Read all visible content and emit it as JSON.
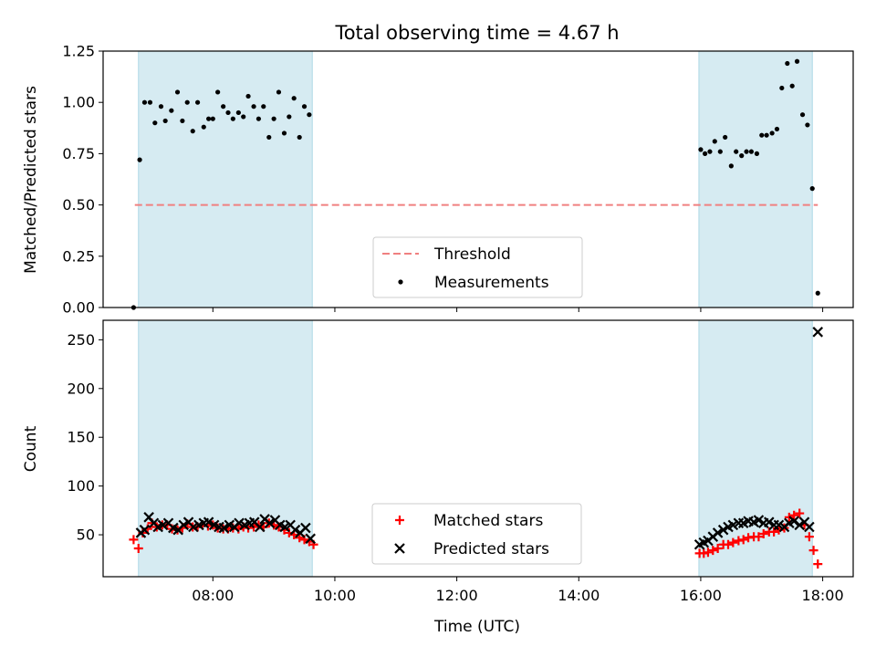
{
  "title": "Total observing time = 4.67 h",
  "x_axis": {
    "label": "Time (UTC)",
    "range_hours": [
      6.2,
      18.5
    ],
    "ticks": [
      {
        "h": 8,
        "label": "08:00"
      },
      {
        "h": 10,
        "label": "10:00"
      },
      {
        "h": 12,
        "label": "12:00"
      },
      {
        "h": 14,
        "label": "14:00"
      },
      {
        "h": 16,
        "label": "16:00"
      },
      {
        "h": 18,
        "label": "18:00"
      }
    ]
  },
  "colors": {
    "shade": "#add8e6",
    "threshold": "#f08080",
    "matched": "#ff0000",
    "predicted": "#000000",
    "measurement": "#000000"
  },
  "chart_data": [
    {
      "type": "scatter",
      "title": "Total observing time = 4.67 h",
      "ylabel": "Matched/Predicted stars",
      "xlabel": "",
      "ylim": [
        0,
        1.25
      ],
      "yticks": [
        "0.00",
        "0.25",
        "0.50",
        "0.75",
        "1.00",
        "1.25"
      ],
      "ytick_values": [
        0,
        0.25,
        0.5,
        0.75,
        1.0,
        1.25
      ],
      "shaded_spans_hours": [
        [
          6.78,
          9.63
        ],
        [
          15.97,
          17.83
        ]
      ],
      "legend": {
        "position": "lower-center",
        "entries": [
          "Threshold",
          "Measurements"
        ]
      },
      "threshold": {
        "name": "Threshold",
        "value": 0.5,
        "x_range_hours": [
          6.72,
          17.92
        ]
      },
      "series": [
        {
          "name": "Measurements",
          "x_hours": [
            6.7,
            6.8,
            6.88,
            6.97,
            7.05,
            7.15,
            7.22,
            7.32,
            7.42,
            7.5,
            7.58,
            7.67,
            7.75,
            7.85,
            7.93,
            8.0,
            8.08,
            8.17,
            8.25,
            8.33,
            8.42,
            8.5,
            8.58,
            8.67,
            8.75,
            8.83,
            8.92,
            9.0,
            9.08,
            9.17,
            9.25,
            9.33,
            9.42,
            9.5,
            9.58,
            16.0,
            16.07,
            16.15,
            16.23,
            16.32,
            16.4,
            16.5,
            16.58,
            16.67,
            16.75,
            16.83,
            16.92,
            17.0,
            17.08,
            17.17,
            17.25,
            17.33,
            17.42,
            17.5,
            17.58,
            17.67,
            17.75,
            17.83,
            17.92
          ],
          "y": [
            0.0,
            0.72,
            1.0,
            1.0,
            0.9,
            0.98,
            0.91,
            0.96,
            1.05,
            0.91,
            1.0,
            0.86,
            1.0,
            0.88,
            0.92,
            0.92,
            1.05,
            0.98,
            0.95,
            0.92,
            0.95,
            0.93,
            1.03,
            0.98,
            0.92,
            0.98,
            0.83,
            0.92,
            1.05,
            0.85,
            0.93,
            1.02,
            0.83,
            0.98,
            0.94,
            0.77,
            0.75,
            0.76,
            0.81,
            0.76,
            0.83,
            0.69,
            0.76,
            0.74,
            0.76,
            0.76,
            0.75,
            0.84,
            0.84,
            0.85,
            0.87,
            1.07,
            1.19,
            1.08,
            1.2,
            0.94,
            0.89,
            0.58,
            0.07
          ]
        }
      ]
    },
    {
      "type": "scatter",
      "ylabel": "Count",
      "xlabel": "Time (UTC)",
      "ylim": [
        7,
        270
      ],
      "yticks": [
        "50",
        "100",
        "150",
        "200",
        "250"
      ],
      "ytick_values": [
        50,
        100,
        150,
        200,
        250
      ],
      "shaded_spans_hours": [
        [
          6.78,
          9.63
        ],
        [
          15.97,
          17.83
        ]
      ],
      "legend": {
        "position": "lower-center",
        "entries": [
          "Matched stars",
          "Predicted stars"
        ]
      },
      "series": [
        {
          "name": "Matched stars",
          "marker": "+",
          "x_hours": [
            6.7,
            6.78,
            6.85,
            6.93,
            7.0,
            7.08,
            7.17,
            7.25,
            7.33,
            7.42,
            7.5,
            7.58,
            7.67,
            7.75,
            7.83,
            7.92,
            8.0,
            8.08,
            8.17,
            8.25,
            8.33,
            8.42,
            8.5,
            8.58,
            8.67,
            8.75,
            8.83,
            8.92,
            9.0,
            9.08,
            9.17,
            9.25,
            9.33,
            9.42,
            9.5,
            9.58,
            9.65,
            15.98,
            16.05,
            16.12,
            16.2,
            16.28,
            16.37,
            16.45,
            16.53,
            16.62,
            16.7,
            16.78,
            16.87,
            16.95,
            17.03,
            17.12,
            17.2,
            17.28,
            17.37,
            17.45,
            17.53,
            17.62,
            17.7,
            17.78,
            17.85,
            17.92
          ],
          "y": [
            45,
            36,
            52,
            56,
            62,
            58,
            60,
            60,
            56,
            55,
            57,
            61,
            58,
            58,
            60,
            59,
            60,
            57,
            56,
            56,
            57,
            56,
            58,
            57,
            58,
            60,
            58,
            62,
            60,
            58,
            55,
            52,
            50,
            47,
            45,
            43,
            40,
            31,
            31,
            32,
            34,
            36,
            40,
            40,
            42,
            44,
            45,
            47,
            48,
            48,
            51,
            53,
            53,
            55,
            57,
            68,
            70,
            72,
            60,
            48,
            34,
            20
          ]
        },
        {
          "name": "Predicted stars",
          "marker": "x",
          "x_hours": [
            6.82,
            6.88,
            6.95,
            7.03,
            7.1,
            7.18,
            7.27,
            7.35,
            7.43,
            7.52,
            7.6,
            7.68,
            7.77,
            7.85,
            7.93,
            8.02,
            8.1,
            8.18,
            8.27,
            8.35,
            8.43,
            8.52,
            8.6,
            8.68,
            8.77,
            8.85,
            8.93,
            9.02,
            9.1,
            9.18,
            9.27,
            9.35,
            9.43,
            9.52,
            9.6,
            15.98,
            16.05,
            16.12,
            16.2,
            16.28,
            16.37,
            16.45,
            16.53,
            16.62,
            16.7,
            16.78,
            16.87,
            16.95,
            17.03,
            17.12,
            17.2,
            17.28,
            17.37,
            17.45,
            17.53,
            17.62,
            17.7,
            17.78,
            17.92
          ],
          "y": [
            52,
            55,
            68,
            62,
            58,
            60,
            62,
            57,
            55,
            60,
            63,
            58,
            60,
            62,
            63,
            60,
            58,
            57,
            60,
            58,
            62,
            60,
            62,
            63,
            58,
            66,
            62,
            65,
            60,
            58,
            60,
            55,
            52,
            57,
            46,
            40,
            42,
            44,
            48,
            52,
            55,
            58,
            60,
            62,
            62,
            64,
            63,
            65,
            62,
            63,
            60,
            60,
            58,
            62,
            64,
            60,
            63,
            58,
            258
          ]
        }
      ]
    }
  ]
}
